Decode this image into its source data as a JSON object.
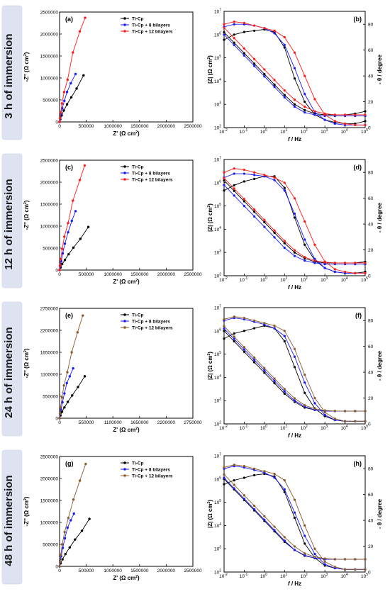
{
  "legend_labels": [
    "Ti-Cp",
    "Ti-Cp + 8 bilayers",
    "Ti-Cp + 12 bilayers"
  ],
  "nyquist_axis": {
    "xlabel": "Z' (Ω cm",
    "ylabel": "-Z'' (Ω cm",
    "exp": "2",
    "close": ")"
  },
  "bode_axis": {
    "xlabel_f": "f",
    "xlabel_rest": " / Hz",
    "ylabel_left": "|Z| (Ω cm",
    "ylabel_right": "- θ / degree",
    "exp": "2",
    "close": ")"
  },
  "rows": [
    {
      "row_label": "3 h of immersion",
      "nyquist": {
        "panel": "(a)",
        "colors": [
          "#000000",
          "#1a1aff",
          "#ff1a1a"
        ],
        "tick_labels": [
          "0",
          "500000",
          "1000000",
          "1500000",
          "2000000",
          "2500000"
        ]
      },
      "bode": {
        "panel": "(b)",
        "colors": [
          "#000000",
          "#1a1aff",
          "#ff1a1a"
        ],
        "deg_tick_labels": [
          "0",
          "20",
          "40",
          "60",
          "80"
        ],
        "f_exponents": [
          "-2",
          "-1",
          "0",
          "1",
          "2",
          "3",
          "4",
          "5"
        ],
        "z_exponents": [
          "2",
          "3",
          "4",
          "5",
          "6",
          "7"
        ]
      }
    },
    {
      "row_label": "12 h of immersion",
      "nyquist": {
        "panel": "(c)",
        "colors": [
          "#000000",
          "#1a1aff",
          "#ff1a1a"
        ],
        "tick_labels": [
          "0",
          "500000",
          "1000000",
          "1500000",
          "2000000",
          "2500000"
        ]
      },
      "bode": {
        "panel": "(d)",
        "colors": [
          "#000000",
          "#1a1aff",
          "#ff1a1a"
        ],
        "deg_tick_labels": [
          "0",
          "20",
          "40",
          "60",
          "80"
        ],
        "f_exponents": [
          "-2",
          "-1",
          "0",
          "1",
          "2",
          "3",
          "4",
          "5"
        ],
        "z_exponents": [
          "2",
          "3",
          "4",
          "5",
          "6",
          "7"
        ]
      }
    },
    {
      "row_label": "24 h of immersion",
      "nyquist": {
        "panel": "(e)",
        "colors": [
          "#000000",
          "#1a1aff",
          "#8b5a2b"
        ],
        "tick_labels": [
          "0",
          "550000",
          "1100000",
          "1650000",
          "2200000",
          "2750000"
        ]
      },
      "bode": {
        "panel": "(f)",
        "colors": [
          "#000000",
          "#1a1aff",
          "#8b5a2b"
        ],
        "deg_tick_labels": [
          "0",
          "20",
          "40",
          "60",
          "80"
        ],
        "f_exponents": [
          "-2",
          "-1",
          "0",
          "1",
          "2",
          "3",
          "4",
          "5"
        ],
        "z_exponents": [
          "2",
          "3",
          "4",
          "5",
          "6",
          "7"
        ]
      }
    },
    {
      "row_label": "48 h of immersion",
      "nyquist": {
        "panel": "(g)",
        "colors": [
          "#000000",
          "#1a1aff",
          "#8b5a2b"
        ],
        "tick_labels": [
          "0",
          "500000",
          "1000000",
          "1500000",
          "2000000",
          "2500000"
        ]
      },
      "bode": {
        "panel": "(h)",
        "colors": [
          "#000000",
          "#1a1aff",
          "#8b5a2b"
        ],
        "deg_tick_labels": [
          "0",
          "20",
          "40",
          "60",
          "80"
        ],
        "f_exponents": [
          "-2",
          "-1",
          "0",
          "1",
          "2",
          "3",
          "4",
          "5"
        ],
        "z_exponents": [
          "2",
          "3",
          "4",
          "5",
          "6",
          "7"
        ]
      }
    }
  ],
  "chart_data": [
    {
      "type": "scatter",
      "panel": "(a)",
      "xlabel": "Z' (Ω cm2)",
      "ylabel": "-Z'' (Ω cm2)",
      "xlim": [
        0,
        2500000
      ],
      "ylim": [
        0,
        2500000
      ],
      "series": [
        {
          "name": "Ti-Cp",
          "x": [
            0,
            15000,
            40000,
            80000,
            140000,
            220000,
            320000,
            450000
          ],
          "y": [
            0,
            60000,
            150000,
            260000,
            400000,
            560000,
            760000,
            1060000
          ]
        },
        {
          "name": "Ti-Cp + 8 bilayers",
          "x": [
            0,
            10000,
            25000,
            50000,
            90000,
            140000,
            210000,
            300000
          ],
          "y": [
            0,
            70000,
            170000,
            310000,
            480000,
            680000,
            880000,
            1090000
          ]
        },
        {
          "name": "Ti-Cp + 12 bilayers",
          "x": [
            0,
            8000,
            20000,
            45000,
            85000,
            150000,
            250000,
            380000,
            480000
          ],
          "y": [
            0,
            80000,
            210000,
            420000,
            680000,
            960000,
            1580000,
            2060000,
            2370000
          ]
        }
      ]
    },
    {
      "type": "line",
      "panel": "(b)",
      "xlabel": "f / Hz",
      "ylabel": "|Z| (Ω cm2)",
      "ylabel_right": "- θ / degree",
      "x_log": true,
      "xlim": [
        0.01,
        100000
      ],
      "y_log": true,
      "ylim": [
        100,
        10000000
      ],
      "y2lim": [
        0,
        90
      ],
      "log_f": [
        -2,
        -1.5,
        -1,
        -0.5,
        0,
        0.5,
        1,
        1.5,
        2,
        2.5,
        3,
        3.5,
        4,
        4.5,
        5
      ],
      "series": [
        {
          "name": "Ti-Cp",
          "log_z": [
            6.1,
            5.65,
            5.2,
            4.75,
            4.3,
            3.85,
            3.4,
            3.0,
            2.75,
            2.6,
            2.55,
            2.55,
            2.55,
            2.6,
            2.7
          ],
          "theta": [
            68,
            72,
            74,
            75,
            76,
            74,
            62,
            38,
            20,
            10,
            6,
            4,
            3,
            3,
            5
          ]
        },
        {
          "name": "Ti-Cp + 8 bilayers",
          "log_z": [
            6.0,
            5.55,
            5.1,
            4.65,
            4.2,
            3.75,
            3.3,
            2.9,
            2.65,
            2.55,
            2.5,
            2.5,
            2.5,
            2.5,
            2.5
          ],
          "theta": [
            78,
            80,
            80,
            79,
            77,
            73,
            64,
            46,
            26,
            12,
            6,
            3,
            2,
            2,
            2
          ]
        },
        {
          "name": "Ti-Cp + 12 bilayers",
          "log_z": [
            6.3,
            5.85,
            5.4,
            4.95,
            4.5,
            4.05,
            3.6,
            3.2,
            2.9,
            2.7,
            2.6,
            2.55,
            2.55,
            2.55,
            2.55
          ],
          "theta": [
            80,
            82,
            81,
            79,
            77,
            75,
            70,
            58,
            40,
            22,
            10,
            5,
            3,
            2,
            2
          ]
        }
      ]
    },
    {
      "type": "scatter",
      "panel": "(c)",
      "xlabel": "Z' (Ω cm2)",
      "ylabel": "-Z'' (Ω cm2)",
      "xlim": [
        0,
        2500000
      ],
      "ylim": [
        0,
        2500000
      ],
      "series": [
        {
          "name": "Ti-Cp",
          "x": [
            0,
            20000,
            50000,
            100000,
            170000,
            260000,
            390000,
            540000
          ],
          "y": [
            0,
            60000,
            140000,
            230000,
            360000,
            510000,
            710000,
            980000
          ]
        },
        {
          "name": "Ti-Cp + 8 bilayers",
          "x": [
            0,
            10000,
            30000,
            60000,
            100000,
            160000,
            230000,
            300000
          ],
          "y": [
            0,
            80000,
            200000,
            380000,
            600000,
            860000,
            1120000,
            1340000
          ]
        },
        {
          "name": "Ti-Cp + 12 bilayers",
          "x": [
            0,
            8000,
            22000,
            50000,
            90000,
            160000,
            250000,
            380000,
            470000
          ],
          "y": [
            0,
            100000,
            250000,
            480000,
            760000,
            1070000,
            1580000,
            2050000,
            2380000
          ]
        }
      ]
    },
    {
      "type": "line",
      "panel": "(d)",
      "xlabel": "f / Hz",
      "ylabel": "|Z| (Ω cm2)",
      "ylabel_right": "- θ / degree",
      "x_log": true,
      "xlim": [
        0.01,
        100000
      ],
      "y_log": true,
      "ylim": [
        100,
        10000000
      ],
      "y2lim": [
        0,
        90
      ],
      "log_f": [
        -2,
        -1.5,
        -1,
        -0.5,
        0,
        0.5,
        1,
        1.5,
        2,
        2.5,
        3,
        3.5,
        4,
        4.5,
        5
      ],
      "series": [
        {
          "name": "Ti-Cp",
          "log_z": [
            6.1,
            5.65,
            5.2,
            4.75,
            4.3,
            3.85,
            3.4,
            3.0,
            2.75,
            2.6,
            2.55,
            2.55,
            2.55,
            2.55,
            2.6
          ],
          "theta": [
            66,
            70,
            73,
            75,
            77,
            77,
            68,
            45,
            24,
            12,
            6,
            3,
            2,
            2,
            3
          ]
        },
        {
          "name": "Ti-Cp + 8 bilayers",
          "log_z": [
            5.9,
            5.45,
            5.0,
            4.55,
            4.1,
            3.65,
            3.2,
            2.85,
            2.65,
            2.55,
            2.5,
            2.5,
            2.5,
            2.5,
            2.5
          ],
          "theta": [
            76,
            79,
            79,
            78,
            77,
            74,
            66,
            48,
            28,
            13,
            6,
            3,
            2,
            2,
            2
          ]
        },
        {
          "name": "Ti-Cp + 12 bilayers",
          "log_z": [
            6.2,
            5.75,
            5.3,
            4.85,
            4.4,
            3.95,
            3.5,
            3.1,
            2.8,
            2.65,
            2.58,
            2.55,
            2.55,
            2.55,
            2.55
          ],
          "theta": [
            80,
            83,
            82,
            80,
            78,
            76,
            72,
            60,
            42,
            24,
            11,
            5,
            3,
            2,
            2
          ]
        }
      ]
    },
    {
      "type": "scatter",
      "panel": "(e)",
      "xlabel": "Z' (Ω cm2)",
      "ylabel": "-Z'' (Ω cm2)",
      "xlim": [
        0,
        2750000
      ],
      "ylim": [
        0,
        2750000
      ],
      "series": [
        {
          "name": "Ti-Cp",
          "x": [
            0,
            20000,
            50000,
            100000,
            170000,
            260000,
            380000,
            520000
          ],
          "y": [
            0,
            70000,
            160000,
            270000,
            410000,
            570000,
            780000,
            1050000
          ]
        },
        {
          "name": "Ti-Cp + 8 bilayers",
          "x": [
            0,
            10000,
            30000,
            60000,
            100000,
            150000,
            210000,
            280000
          ],
          "y": [
            0,
            90000,
            220000,
            400000,
            620000,
            880000,
            1050000,
            1250000
          ]
        },
        {
          "name": "Ti-Cp + 12 bilayers",
          "x": [
            0,
            8000,
            22000,
            50000,
            90000,
            160000,
            250000,
            370000,
            480000
          ],
          "y": [
            0,
            110000,
            270000,
            520000,
            820000,
            1150000,
            1650000,
            2150000,
            2570000
          ]
        }
      ]
    },
    {
      "type": "line",
      "panel": "(f)",
      "xlabel": "f / Hz",
      "ylabel": "|Z| (Ω cm2)",
      "ylabel_right": "- θ / degree",
      "x_log": true,
      "xlim": [
        0.01,
        100000
      ],
      "y_log": true,
      "ylim": [
        100,
        10000000
      ],
      "y2lim": [
        0,
        90
      ],
      "log_f": [
        -2,
        -1.5,
        -1,
        -0.5,
        0,
        0.5,
        1,
        1.5,
        2,
        2.5,
        3,
        3.5,
        4,
        4.5,
        5
      ],
      "series": [
        {
          "name": "Ti-Cp",
          "log_z": [
            6.0,
            5.55,
            5.1,
            4.65,
            4.2,
            3.75,
            3.3,
            2.95,
            2.7,
            2.6,
            2.55,
            2.55,
            2.55,
            2.55,
            2.55
          ],
          "theta": [
            66,
            70,
            72,
            74,
            76,
            74,
            64,
            44,
            24,
            12,
            6,
            3,
            2,
            2,
            2
          ]
        },
        {
          "name": "Ti-Cp + 8 bilayers",
          "log_z": [
            6.1,
            5.65,
            5.2,
            4.75,
            4.3,
            3.85,
            3.4,
            3.0,
            2.75,
            2.6,
            2.55,
            2.55,
            2.55,
            2.55,
            2.55
          ],
          "theta": [
            80,
            82,
            81,
            79,
            77,
            74,
            68,
            52,
            32,
            16,
            7,
            3,
            2,
            2,
            2
          ]
        },
        {
          "name": "Ti-Cp + 12 bilayers",
          "log_z": [
            6.2,
            5.75,
            5.3,
            4.85,
            4.4,
            3.95,
            3.5,
            3.1,
            2.8,
            2.65,
            2.58,
            2.55,
            2.55,
            2.55,
            2.55
          ],
          "theta": [
            81,
            83,
            82,
            80,
            78,
            76,
            72,
            58,
            38,
            20,
            9,
            4,
            2,
            2,
            2
          ]
        }
      ]
    },
    {
      "type": "scatter",
      "panel": "(g)",
      "xlabel": "Z' (Ω cm2)",
      "ylabel": "-Z'' (Ω cm2)",
      "xlim": [
        0,
        2500000
      ],
      "ylim": [
        0,
        2500000
      ],
      "series": [
        {
          "name": "Ti-Cp",
          "x": [
            0,
            20000,
            55000,
            110000,
            190000,
            290000,
            420000,
            560000
          ],
          "y": [
            0,
            70000,
            160000,
            280000,
            430000,
            610000,
            810000,
            1080000
          ]
        },
        {
          "name": "Ti-Cp + 8 bilayers",
          "x": [
            0,
            10000,
            30000,
            60000,
            100000,
            150000,
            210000,
            270000
          ],
          "y": [
            0,
            90000,
            230000,
            420000,
            640000,
            880000,
            1050000,
            1200000
          ]
        },
        {
          "name": "Ti-Cp + 12 bilayers",
          "x": [
            0,
            8000,
            22000,
            50000,
            95000,
            165000,
            260000,
            380000,
            490000
          ],
          "y": [
            0,
            100000,
            260000,
            500000,
            780000,
            1100000,
            1520000,
            1950000,
            2330000
          ]
        }
      ]
    },
    {
      "type": "line",
      "panel": "(h)",
      "xlabel": "f / Hz",
      "ylabel": "|Z| (Ω cm2)",
      "ylabel_right": "- θ / degree",
      "x_log": true,
      "xlim": [
        0.01,
        100000
      ],
      "y_log": true,
      "ylim": [
        100,
        10000000
      ],
      "y2lim": [
        0,
        90
      ],
      "log_f": [
        -2,
        -1.5,
        -1,
        -0.5,
        0,
        0.5,
        1,
        1.5,
        2,
        2.5,
        3,
        3.5,
        4,
        4.5,
        5
      ],
      "series": [
        {
          "name": "Ti-Cp",
          "log_z": [
            6.0,
            5.55,
            5.1,
            4.65,
            4.2,
            3.75,
            3.3,
            2.95,
            2.7,
            2.6,
            2.55,
            2.55,
            2.55,
            2.55,
            2.55
          ],
          "theta": [
            68,
            71,
            73,
            75,
            76,
            74,
            62,
            42,
            22,
            11,
            5,
            3,
            2,
            2,
            2
          ]
        },
        {
          "name": "Ti-Cp + 8 bilayers",
          "log_z": [
            6.05,
            5.6,
            5.15,
            4.7,
            4.25,
            3.8,
            3.35,
            2.95,
            2.72,
            2.6,
            2.55,
            2.55,
            2.55,
            2.55,
            2.55
          ],
          "theta": [
            80,
            82,
            81,
            79,
            77,
            73,
            64,
            46,
            28,
            14,
            6,
            3,
            2,
            2,
            2
          ]
        },
        {
          "name": "Ti-Cp + 12 bilayers",
          "log_z": [
            6.2,
            5.75,
            5.3,
            4.85,
            4.4,
            3.95,
            3.5,
            3.1,
            2.8,
            2.65,
            2.58,
            2.55,
            2.55,
            2.55,
            2.55
          ],
          "theta": [
            81,
            83,
            82,
            80,
            78,
            76,
            71,
            56,
            36,
            18,
            8,
            4,
            2,
            2,
            2
          ]
        }
      ]
    }
  ]
}
